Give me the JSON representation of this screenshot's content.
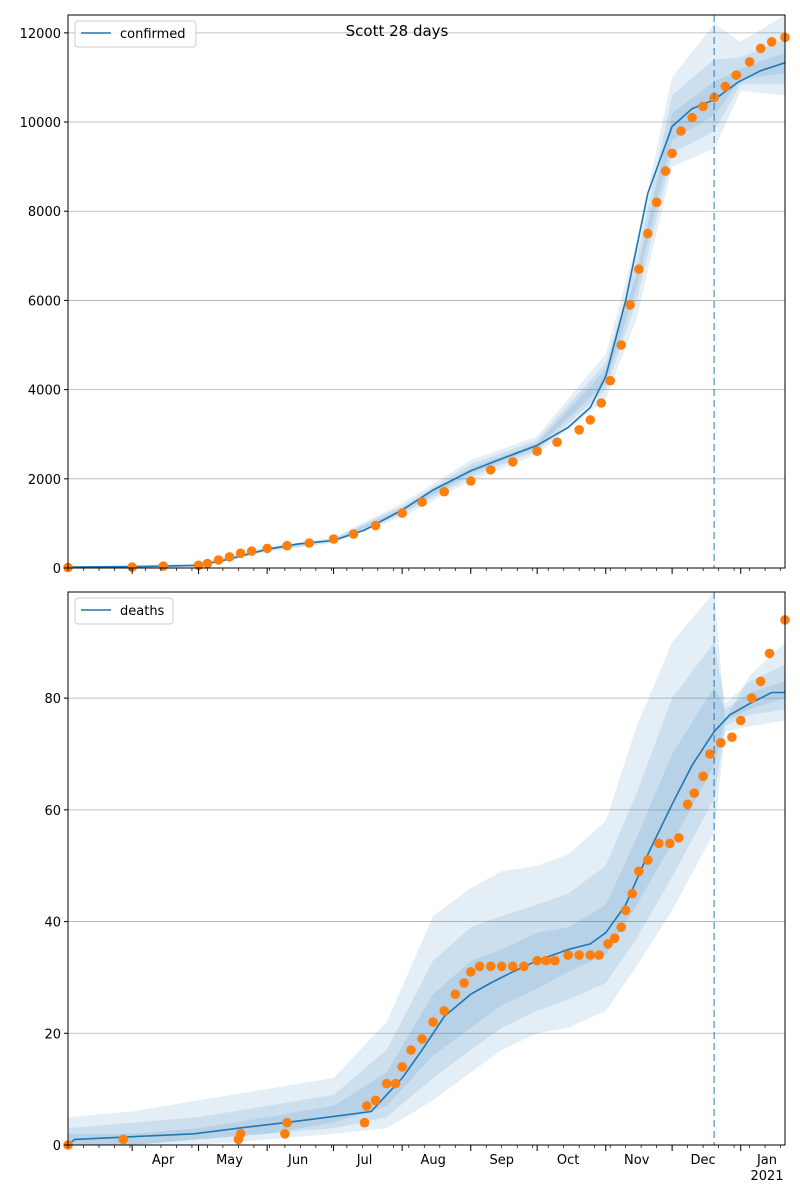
{
  "title": "Scott 28 days",
  "colors": {
    "model": "#1f77b4",
    "observed": "#ff7f0e",
    "band": "#1f77b4",
    "grid": "#b0b0b0"
  },
  "x_ticks": [
    "Apr",
    "May",
    "Jun",
    "Jul",
    "Aug",
    "Sep",
    "Oct",
    "Nov",
    "Dec",
    "Jan"
  ],
  "x_tick_year": "2021",
  "chart_data": [
    {
      "type": "line",
      "legend": "confirmed",
      "legend_position": "top-left",
      "grid": "y",
      "xlim": [
        "2020-03-03",
        "2021-01-21"
      ],
      "ylim": [
        0,
        12400
      ],
      "yticks": [
        0,
        2000,
        4000,
        6000,
        8000,
        10000,
        12000
      ],
      "forecast_start": "2020-12-20",
      "model": {
        "name": "confirmed",
        "x": [
          "2020-03-03",
          "2020-04-01",
          "2020-04-15",
          "2020-05-01",
          "2020-05-15",
          "2020-06-01",
          "2020-06-15",
          "2020-07-01",
          "2020-07-15",
          "2020-08-01",
          "2020-08-15",
          "2020-09-01",
          "2020-09-15",
          "2020-10-01",
          "2020-10-15",
          "2020-10-25",
          "2020-11-01",
          "2020-11-10",
          "2020-11-20",
          "2020-12-01",
          "2020-12-10",
          "2020-12-20",
          "2020-12-31",
          "2021-01-10",
          "2021-01-21"
        ],
        "y": [
          20,
          30,
          40,
          60,
          200,
          420,
          540,
          620,
          850,
          1300,
          1750,
          2180,
          2450,
          2750,
          3150,
          3600,
          4300,
          6000,
          8400,
          9900,
          10300,
          10500,
          10900,
          11150,
          11330
        ]
      },
      "bands": [
        {
          "x": [
            "2020-03-03",
            "2020-05-01",
            "2020-06-01",
            "2020-07-01",
            "2020-08-01",
            "2020-09-01",
            "2020-10-01",
            "2020-11-01",
            "2020-11-15",
            "2020-12-01",
            "2020-12-20",
            "2021-01-01",
            "2021-01-21"
          ],
          "lower": [
            0,
            20,
            360,
            560,
            1150,
            1950,
            2550,
            3800,
            5600,
            9000,
            9400,
            10700,
            10600
          ],
          "upper": [
            40,
            100,
            480,
            680,
            1450,
            2420,
            2950,
            4800,
            7300,
            11000,
            12200,
            11800,
            12500
          ]
        },
        {
          "x": [
            "2020-03-03",
            "2020-05-01",
            "2020-06-01",
            "2020-07-01",
            "2020-08-01",
            "2020-09-01",
            "2020-10-01",
            "2020-11-01",
            "2020-11-15",
            "2020-12-01",
            "2020-12-20",
            "2021-01-01",
            "2021-01-21"
          ],
          "lower": [
            5,
            35,
            385,
            585,
            1210,
            2040,
            2630,
            4000,
            6000,
            9300,
            9800,
            10850,
            10850
          ],
          "upper": [
            30,
            80,
            455,
            655,
            1390,
            2330,
            2870,
            4600,
            6900,
            10600,
            11400,
            11450,
            11850
          ]
        },
        {
          "x": [
            "2020-03-03",
            "2020-05-01",
            "2020-06-01",
            "2020-07-01",
            "2020-08-01",
            "2020-09-01",
            "2020-10-01",
            "2020-11-01",
            "2020-11-15",
            "2020-12-01",
            "2020-12-20",
            "2021-01-01",
            "2021-01-21"
          ],
          "lower": [
            12,
            48,
            405,
            605,
            1260,
            2110,
            2700,
            4150,
            6300,
            9600,
            10150,
            10950,
            11100
          ],
          "upper": [
            25,
            68,
            435,
            635,
            1340,
            2250,
            2800,
            4450,
            6600,
            10200,
            10900,
            11200,
            11550
          ]
        }
      ],
      "observed": {
        "name": "observed",
        "x": [
          "2020-03-03",
          "2020-04-01",
          "2020-04-15",
          "2020-05-01",
          "2020-05-05",
          "2020-05-10",
          "2020-05-15",
          "2020-05-20",
          "2020-05-25",
          "2020-06-01",
          "2020-06-10",
          "2020-06-20",
          "2020-07-01",
          "2020-07-10",
          "2020-07-20",
          "2020-08-01",
          "2020-08-10",
          "2020-08-20",
          "2020-09-01",
          "2020-09-10",
          "2020-09-20",
          "2020-10-01",
          "2020-10-10",
          "2020-10-20",
          "2020-10-25",
          "2020-10-30",
          "2020-11-03",
          "2020-11-08",
          "2020-11-12",
          "2020-11-16",
          "2020-11-20",
          "2020-11-24",
          "2020-11-28",
          "2020-12-01",
          "2020-12-05",
          "2020-12-10",
          "2020-12-15",
          "2020-12-20",
          "2020-12-25",
          "2020-12-30",
          "2021-01-05",
          "2021-01-10",
          "2021-01-15",
          "2021-01-21"
        ],
        "y": [
          10,
          20,
          40,
          60,
          100,
          180,
          250,
          330,
          380,
          440,
          500,
          560,
          650,
          760,
          950,
          1230,
          1480,
          1710,
          1950,
          2200,
          2380,
          2620,
          2820,
          3100,
          3320,
          3700,
          4200,
          5000,
          5900,
          6700,
          7500,
          8200,
          8900,
          9300,
          9800,
          10100,
          10350,
          10550,
          10800,
          11050,
          11350,
          11650,
          11800,
          11900
        ]
      }
    },
    {
      "type": "line",
      "legend": "deaths",
      "legend_position": "top-left",
      "grid": "y",
      "xlim": [
        "2020-03-03",
        "2021-01-21"
      ],
      "ylim": [
        0,
        99
      ],
      "yticks": [
        0,
        20,
        40,
        60,
        80
      ],
      "forecast_start": "2020-12-20",
      "model": {
        "name": "deaths",
        "x": [
          "2020-03-03",
          "2020-03-06",
          "2020-04-29",
          "2020-05-19",
          "2020-06-09",
          "2020-06-29",
          "2020-07-18",
          "2020-07-25",
          "2020-08-01",
          "2020-08-10",
          "2020-08-20",
          "2020-09-01",
          "2020-09-10",
          "2020-09-20",
          "2020-10-01",
          "2020-10-15",
          "2020-10-25",
          "2020-11-01",
          "2020-11-10",
          "2020-11-20",
          "2020-12-01",
          "2020-12-10",
          "2020-12-20",
          "2020-12-27",
          "2021-01-05",
          "2021-01-15",
          "2021-01-21"
        ],
        "y": [
          0,
          1,
          2,
          3,
          4,
          5,
          6,
          9,
          12,
          17,
          23,
          27,
          29,
          31,
          33,
          35,
          36,
          38,
          43,
          52,
          61,
          68,
          74,
          77,
          79,
          81,
          81
        ]
      },
      "bands": [
        {
          "x": [
            "2020-03-03",
            "2020-04-01",
            "2020-05-01",
            "2020-06-01",
            "2020-07-01",
            "2020-07-25",
            "2020-08-15",
            "2020-09-01",
            "2020-09-15",
            "2020-10-01",
            "2020-10-15",
            "2020-11-01",
            "2020-11-15",
            "2020-12-01",
            "2020-12-20",
            "2020-12-25",
            "2021-01-05",
            "2021-01-21"
          ],
          "lower": [
            0,
            0,
            0,
            1,
            2,
            3,
            8,
            13,
            17,
            20,
            21,
            24,
            32,
            42,
            56,
            74,
            75,
            76
          ],
          "upper": [
            5,
            6,
            8,
            10,
            12,
            22,
            41,
            46,
            49,
            50,
            52,
            58,
            75,
            90,
            100,
            76,
            84,
            90
          ]
        },
        {
          "x": [
            "2020-03-03",
            "2020-04-01",
            "2020-05-01",
            "2020-06-01",
            "2020-07-01",
            "2020-07-25",
            "2020-08-15",
            "2020-09-01",
            "2020-09-15",
            "2020-10-01",
            "2020-10-15",
            "2020-11-01",
            "2020-11-15",
            "2020-12-01",
            "2020-12-20",
            "2020-12-25",
            "2021-01-05",
            "2021-01-21"
          ],
          "lower": [
            0,
            0,
            1,
            2,
            3,
            5,
            12,
            17,
            21,
            24,
            26,
            29,
            37,
            48,
            62,
            75,
            77,
            78
          ],
          "upper": [
            3,
            4,
            5,
            7,
            9,
            17,
            33,
            39,
            41,
            43,
            45,
            50,
            63,
            80,
            90,
            79,
            83,
            86
          ]
        },
        {
          "x": [
            "2020-03-03",
            "2020-04-01",
            "2020-05-01",
            "2020-06-01",
            "2020-07-01",
            "2020-07-25",
            "2020-08-15",
            "2020-09-01",
            "2020-09-15",
            "2020-10-01",
            "2020-10-15",
            "2020-11-01",
            "2020-11-15",
            "2020-12-01",
            "2020-12-20",
            "2020-12-25",
            "2021-01-05",
            "2021-01-21"
          ],
          "lower": [
            0,
            0,
            1,
            2,
            4,
            7,
            16,
            21,
            25,
            28,
            31,
            34,
            43,
            54,
            68,
            76,
            78,
            80
          ],
          "upper": [
            2,
            2,
            3,
            5,
            7,
            13,
            27,
            33,
            35,
            38,
            39,
            43,
            55,
            70,
            82,
            78,
            81,
            83
          ]
        }
      ],
      "observed": {
        "name": "observed",
        "x": [
          "2020-03-03",
          "2020-03-28",
          "2020-05-19",
          "2020-05-20",
          "2020-06-09",
          "2020-06-10",
          "2020-07-15",
          "2020-07-16",
          "2020-07-20",
          "2020-07-25",
          "2020-07-29",
          "2020-08-01",
          "2020-08-05",
          "2020-08-10",
          "2020-08-15",
          "2020-08-20",
          "2020-08-25",
          "2020-08-29",
          "2020-09-01",
          "2020-09-05",
          "2020-09-10",
          "2020-09-15",
          "2020-09-20",
          "2020-09-25",
          "2020-10-01",
          "2020-10-05",
          "2020-10-09",
          "2020-10-15",
          "2020-10-20",
          "2020-10-25",
          "2020-10-29",
          "2020-11-02",
          "2020-11-05",
          "2020-11-08",
          "2020-11-10",
          "2020-11-13",
          "2020-11-16",
          "2020-11-20",
          "2020-11-25",
          "2020-11-30",
          "2020-12-04",
          "2020-12-08",
          "2020-12-11",
          "2020-12-15",
          "2020-12-18",
          "2020-12-23",
          "2020-12-28",
          "2021-01-01",
          "2021-01-06",
          "2021-01-10",
          "2021-01-14",
          "2021-01-21"
        ],
        "y": [
          0,
          1,
          1,
          2,
          2,
          4,
          4,
          7,
          8,
          11,
          11,
          14,
          17,
          19,
          22,
          24,
          27,
          29,
          31,
          32,
          32,
          32,
          32,
          32,
          33,
          33,
          33,
          34,
          34,
          34,
          34,
          36,
          37,
          39,
          42,
          45,
          49,
          51,
          54,
          54,
          55,
          61,
          63,
          66,
          70,
          72,
          73,
          76,
          80,
          83,
          88,
          94
        ]
      }
    }
  ]
}
